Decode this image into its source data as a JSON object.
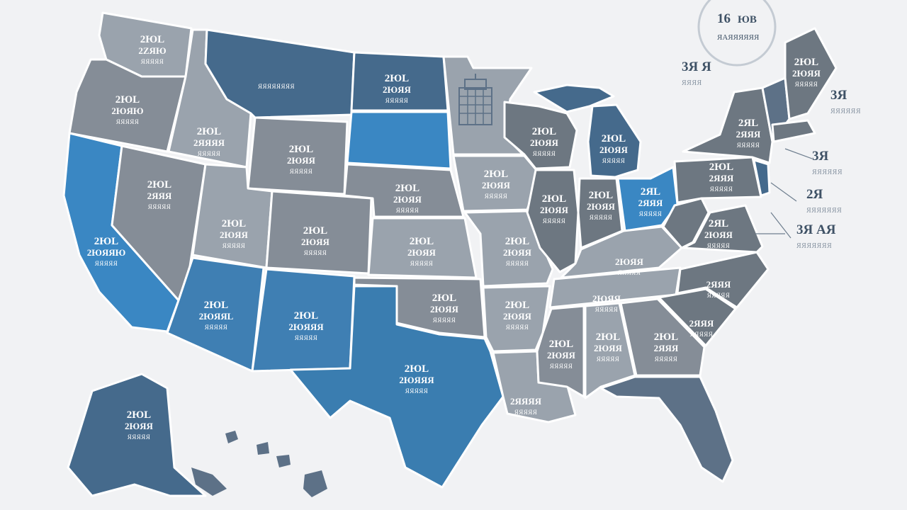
{
  "colors": {
    "background": "#f1f2f4",
    "gray_light": "#9aa3ad",
    "gray_mid": "#858d97",
    "gray_dark": "#6d7781",
    "slate": "#5d7187",
    "blue_dark": "#456a8c",
    "blue": "#3f7fb3",
    "blue_bright": "#3a87c3"
  },
  "badge": {
    "top": "16",
    "top_suffix": "ЮB",
    "bottom": "ЯAЯЯЯЯЯЯ"
  },
  "state_labels": {
    "wa": [
      "2ЮL",
      "2ZЯЮ",
      "ЯЯЯЯЯ"
    ],
    "or": [
      "2ЮL",
      "2ЮЯЮ",
      "ЯЯЯЯЯ"
    ],
    "ca": [
      "2ЮL",
      "2ЮЯЯЮ",
      "ЯЯЯЯЯ"
    ],
    "id": [
      "2ЮL",
      "2ЯЯЯЯ",
      "ЯЯЯЯЯ"
    ],
    "mt": [
      "",
      "",
      "ЯЯЯЯЯЯЯЯ"
    ],
    "nv": [
      "2ЮL",
      "2ЯЯЯ",
      "ЯЯЯЯЯ"
    ],
    "wy": [
      "2ЮL",
      "2ЮЯЯ",
      "ЯЯЯЯЯ"
    ],
    "ut": [
      "2ЮL",
      "2ЮЯЯ",
      "ЯЯЯЯЯ"
    ],
    "co": [
      "2ЮL",
      "2ЮЯЯ",
      "ЯЯЯЯЯ"
    ],
    "az": [
      "2ЮL",
      "2ЮЯЯL",
      "ЯЯЯЯЯ"
    ],
    "nm": [
      "2ЮL",
      "2ЮЯЯЯ",
      "ЯЯЯЯЯ"
    ],
    "nd": [
      "2ЮL",
      "2ЮЯЯ",
      "ЯЯЯЯЯ"
    ],
    "ne": [
      "2ЮL",
      "2ЮЯЯ",
      "ЯЯЯЯЯ"
    ],
    "ks": [
      "2ЮL",
      "2ЮЯЯ",
      "ЯЯЯЯЯ"
    ],
    "ok": [
      "2ЮL",
      "2ЮЯЯ",
      "ЯЯЯЯЯ"
    ],
    "tx": [
      "2ЮL",
      "2ЮЯЯЯ",
      "ЯЯЯЯЯ"
    ],
    "ia": [
      "2ЮL",
      "2ЮЯЯ",
      "ЯЯЯЯЯ"
    ],
    "mo": [
      "2ЮL",
      "2ЮЯЯ",
      "ЯЯЯЯЯ"
    ],
    "ar": [
      "2ЮL",
      "2ЮЯЯ",
      "ЯЯЯЯЯ"
    ],
    "la": [
      "",
      "2ЯЯЯЯ",
      "ЯЯЯЯЯ"
    ],
    "wi": [
      "2ЮL",
      "2ЮЯЯ",
      "ЯЯЯЯЯ"
    ],
    "il": [
      "2ЮL",
      "2ЮЯЯ",
      "ЯЯЯЯЯ"
    ],
    "mi": [
      "2ЮL",
      "2ЮЯЯ",
      "ЯЯЯЯЯ"
    ],
    "in": [
      "2ЮL",
      "2ЮЯЯ",
      "ЯЯЯЯЯ"
    ],
    "oh": [
      "2ЯL",
      "2ЯЯЯ",
      "ЯЯЯЯЯ"
    ],
    "ky": [
      "",
      "2ЮЯЯ",
      "ЯЯЯЯЯ"
    ],
    "tn": [
      "",
      "2ЮЯЯ",
      "ЯЯЯЯЯ"
    ],
    "ms": [
      "2ЮL",
      "2ЮЯЯ",
      "ЯЯЯЯЯ"
    ],
    "al": [
      "2ЮL",
      "2ЮЯЯ",
      "ЯЯЯЯЯ"
    ],
    "ga": [
      "2ЮL",
      "2ЯЯЯ",
      "ЯЯЯЯЯ"
    ],
    "sc": [
      "",
      "2ЯЯЯ",
      "ЯЯЯЯЯ"
    ],
    "nc": [
      "",
      "2ЯЯЯ",
      "ЯЯЯЯЯ"
    ],
    "va": [
      "2ЯL",
      "2ЮЯЯ",
      "ЯЯЯЯЯ"
    ],
    "pa": [
      "2ЮL",
      "2ЯЯЯ",
      "ЯЯЯЯЯ"
    ],
    "ny": [
      "2ЯL",
      "2ЯЯЯ",
      "ЯЯЯЯЯ"
    ],
    "me": [
      "2ЮL",
      "2ЮЯЯ",
      "ЯЯЯЯЯ"
    ],
    "ak": [
      "2ЮL",
      "2ЮЯЯ",
      "ЯЯЯЯЯ"
    ]
  },
  "callouts": [
    {
      "big": "3Я Я",
      "small": "ЯЯЯЯ"
    },
    {
      "big": "3Я",
      "small": "ЯЯЯЯЯЯ"
    },
    {
      "big": "3Я",
      "small": "ЯЯЯЯЯЯ"
    },
    {
      "big": "2Я",
      "small": "ЯЯЯЯЯЯЯ"
    },
    {
      "big": "3Я AЯ",
      "small": "ЯЯЯЯЯЯЯ"
    }
  ]
}
